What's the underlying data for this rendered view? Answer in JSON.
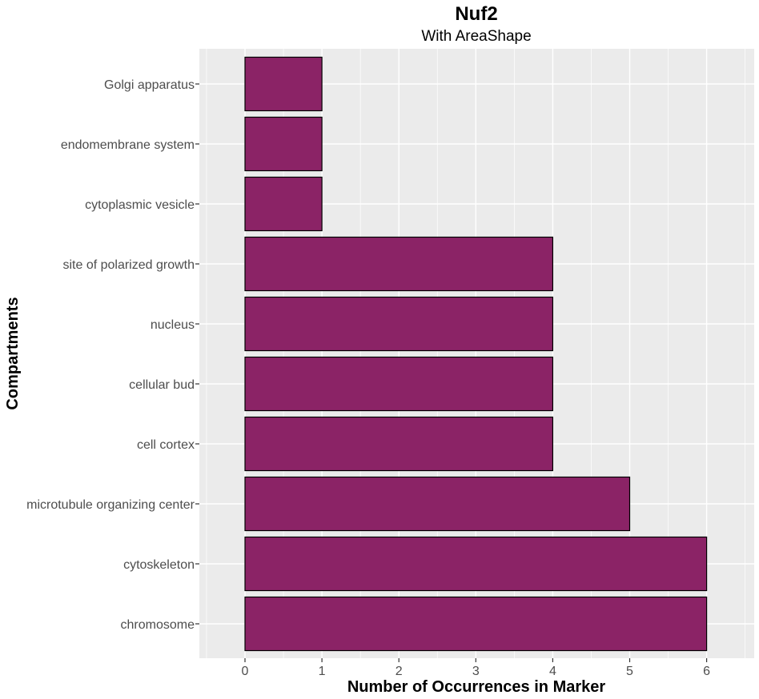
{
  "chart_data": {
    "type": "bar",
    "orientation": "horizontal",
    "title": "Nuf2",
    "subtitle": "With AreaShape",
    "xlabel": "Number of Occurrences in Marker",
    "ylabel": "Compartments",
    "xlim": [
      -0.6,
      6.6
    ],
    "x_ticks": [
      "0",
      "1",
      "2",
      "3",
      "4",
      "5",
      "6"
    ],
    "categories": [
      "Golgi apparatus",
      "endomembrane system",
      "cytoplasmic vesicle",
      "site of polarized growth",
      "nucleus",
      "cellular bud",
      "cell cortex",
      "microtubule organizing center",
      "cytoskeleton",
      "chromosome"
    ],
    "values": [
      1,
      1,
      1,
      4,
      4,
      4,
      4,
      5,
      6,
      6
    ],
    "bar_color": "#8B2366",
    "panel_background": "#EBEBEB",
    "grid": true,
    "legend": "none"
  }
}
